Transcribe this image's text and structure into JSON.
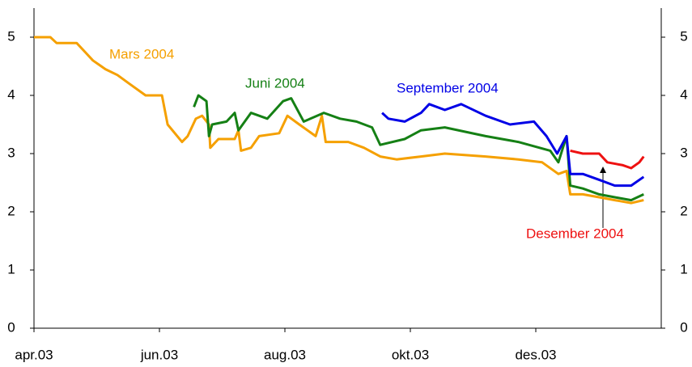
{
  "chart_data": {
    "type": "line",
    "xlim": [
      0,
      10
    ],
    "xticks": [
      {
        "value": 0,
        "label": "apr.03"
      },
      {
        "value": 2,
        "label": "jun.03"
      },
      {
        "value": 4,
        "label": "aug.03"
      },
      {
        "value": 6,
        "label": "okt.03"
      },
      {
        "value": 8,
        "label": "des.03"
      }
    ],
    "ylim": [
      0,
      5.5
    ],
    "yticks": [
      0,
      1,
      2,
      3,
      4,
      5
    ],
    "y2lim": [
      0,
      5.5
    ],
    "y2ticks": [
      0,
      1,
      2,
      3,
      4,
      5
    ],
    "series": [
      {
        "name": "Mars 2004",
        "color": "#f5a000",
        "x": [
          0,
          0.26,
          0.36,
          0.68,
          0.81,
          0.94,
          1.14,
          1.33,
          1.52,
          1.78,
          2.04,
          2.13,
          2.36,
          2.45,
          2.58,
          2.68,
          2.79,
          2.81,
          2.94,
          3.2,
          3.26,
          3.3,
          3.46,
          3.59,
          3.91,
          4.04,
          4.23,
          4.49,
          4.59,
          4.65,
          5.01,
          5.26,
          5.52,
          5.78,
          6.17,
          6.55,
          7.2,
          7.72,
          8.1,
          8.36,
          8.49,
          8.55,
          8.75,
          9.01,
          9.26,
          9.52,
          9.72
        ],
        "values": [
          5.0,
          5.0,
          4.9,
          4.9,
          4.75,
          4.6,
          4.45,
          4.35,
          4.2,
          4.0,
          4.0,
          3.5,
          3.2,
          3.3,
          3.6,
          3.65,
          3.5,
          3.1,
          3.25,
          3.25,
          3.4,
          3.05,
          3.1,
          3.3,
          3.35,
          3.65,
          3.5,
          3.3,
          3.65,
          3.2,
          3.2,
          3.1,
          2.95,
          2.9,
          2.95,
          3.0,
          2.95,
          2.9,
          2.85,
          2.65,
          2.7,
          2.3,
          2.3,
          2.25,
          2.2,
          2.15,
          2.2
        ]
      },
      {
        "name": "Juni 2004",
        "color": "#158015",
        "x": [
          2.55,
          2.62,
          2.75,
          2.79,
          2.84,
          3.07,
          3.2,
          3.26,
          3.46,
          3.72,
          3.97,
          4.1,
          4.3,
          4.62,
          4.88,
          5.14,
          5.39,
          5.52,
          5.91,
          6.17,
          6.55,
          7.2,
          7.72,
          8.23,
          8.36,
          8.49,
          8.55,
          8.75,
          9.01,
          9.26,
          9.52,
          9.72
        ],
        "values": [
          3.8,
          4.0,
          3.9,
          3.3,
          3.5,
          3.55,
          3.7,
          3.4,
          3.7,
          3.6,
          3.9,
          3.95,
          3.55,
          3.7,
          3.6,
          3.55,
          3.45,
          3.15,
          3.25,
          3.4,
          3.45,
          3.3,
          3.2,
          3.05,
          2.85,
          3.3,
          2.45,
          2.4,
          2.3,
          2.25,
          2.2,
          2.3
        ]
      },
      {
        "name": "September 2004",
        "color": "#0000e6",
        "x": [
          5.55,
          5.65,
          5.91,
          6.17,
          6.3,
          6.55,
          6.81,
          7.2,
          7.59,
          7.97,
          8.17,
          8.34,
          8.49,
          8.55,
          8.75,
          9.01,
          9.26,
          9.52,
          9.72
        ],
        "values": [
          3.7,
          3.6,
          3.55,
          3.7,
          3.85,
          3.75,
          3.85,
          3.65,
          3.5,
          3.55,
          3.3,
          3.0,
          3.3,
          2.65,
          2.65,
          2.55,
          2.45,
          2.45,
          2.6
        ]
      },
      {
        "name": "Desember 2004",
        "color": "#ee1111",
        "x": [
          8.55,
          8.75,
          9.01,
          9.14,
          9.39,
          9.52,
          9.65,
          9.72
        ],
        "values": [
          3.05,
          3.0,
          3.0,
          2.85,
          2.8,
          2.75,
          2.85,
          2.95
        ]
      }
    ]
  }
}
